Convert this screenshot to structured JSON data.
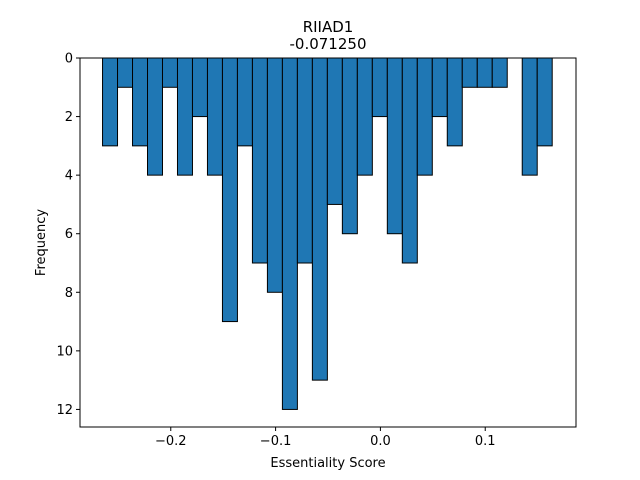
{
  "chart_data": {
    "type": "bar",
    "title": "RIIAD1",
    "subtitle": "-0.071250",
    "xlabel": "Essentiality Score",
    "ylabel": "Frequency",
    "y_inverted": true,
    "xlim": [
      -0.2866,
      0.1866
    ],
    "ylim": [
      12.6,
      0
    ],
    "xticks": [
      -0.2,
      -0.1,
      0.0,
      0.1
    ],
    "xtick_labels": [
      "−0.2",
      "−0.1",
      "0.0",
      "0.1"
    ],
    "yticks": [
      0,
      2,
      4,
      6,
      8,
      10,
      12
    ],
    "ytick_labels": [
      "0",
      "2",
      "4",
      "6",
      "8",
      "10",
      "12"
    ],
    "bin_width": 0.0143,
    "bins": [
      {
        "x0": -0.2651,
        "x1": -0.2508,
        "value": 3
      },
      {
        "x0": -0.2508,
        "x1": -0.2365,
        "value": 1
      },
      {
        "x0": -0.2365,
        "x1": -0.2222,
        "value": 3
      },
      {
        "x0": -0.2222,
        "x1": -0.2079,
        "value": 4
      },
      {
        "x0": -0.2079,
        "x1": -0.1936,
        "value": 1
      },
      {
        "x0": -0.1936,
        "x1": -0.1793,
        "value": 4
      },
      {
        "x0": -0.1793,
        "x1": -0.165,
        "value": 2
      },
      {
        "x0": -0.165,
        "x1": -0.1507,
        "value": 4
      },
      {
        "x0": -0.1507,
        "x1": -0.1364,
        "value": 9
      },
      {
        "x0": -0.1364,
        "x1": -0.1221,
        "value": 3
      },
      {
        "x0": -0.1221,
        "x1": -0.1078,
        "value": 7
      },
      {
        "x0": -0.1078,
        "x1": -0.0935,
        "value": 8
      },
      {
        "x0": -0.0935,
        "x1": -0.0792,
        "value": 12
      },
      {
        "x0": -0.0792,
        "x1": -0.0649,
        "value": 7
      },
      {
        "x0": -0.0649,
        "x1": -0.0506,
        "value": 11
      },
      {
        "x0": -0.0506,
        "x1": -0.0363,
        "value": 5
      },
      {
        "x0": -0.0363,
        "x1": -0.022,
        "value": 6
      },
      {
        "x0": -0.022,
        "x1": -0.0077,
        "value": 4
      },
      {
        "x0": -0.0077,
        "x1": 0.0066,
        "value": 2
      },
      {
        "x0": 0.0066,
        "x1": 0.0209,
        "value": 6
      },
      {
        "x0": 0.0209,
        "x1": 0.0352,
        "value": 7
      },
      {
        "x0": 0.0352,
        "x1": 0.0495,
        "value": 4
      },
      {
        "x0": 0.0495,
        "x1": 0.0638,
        "value": 2
      },
      {
        "x0": 0.0638,
        "x1": 0.0781,
        "value": 3
      },
      {
        "x0": 0.0781,
        "x1": 0.0924,
        "value": 1
      },
      {
        "x0": 0.0924,
        "x1": 0.1067,
        "value": 1
      },
      {
        "x0": 0.1067,
        "x1": 0.121,
        "value": 1
      },
      {
        "x0": 0.121,
        "x1": 0.1353,
        "value": 0
      },
      {
        "x0": 0.1353,
        "x1": 0.1496,
        "value": 4
      },
      {
        "x0": 0.1496,
        "x1": 0.1639,
        "value": 3
      }
    ],
    "bar_color": "#1f77b4",
    "bar_edge_color": "#000000",
    "grid": false,
    "legend": "none"
  }
}
